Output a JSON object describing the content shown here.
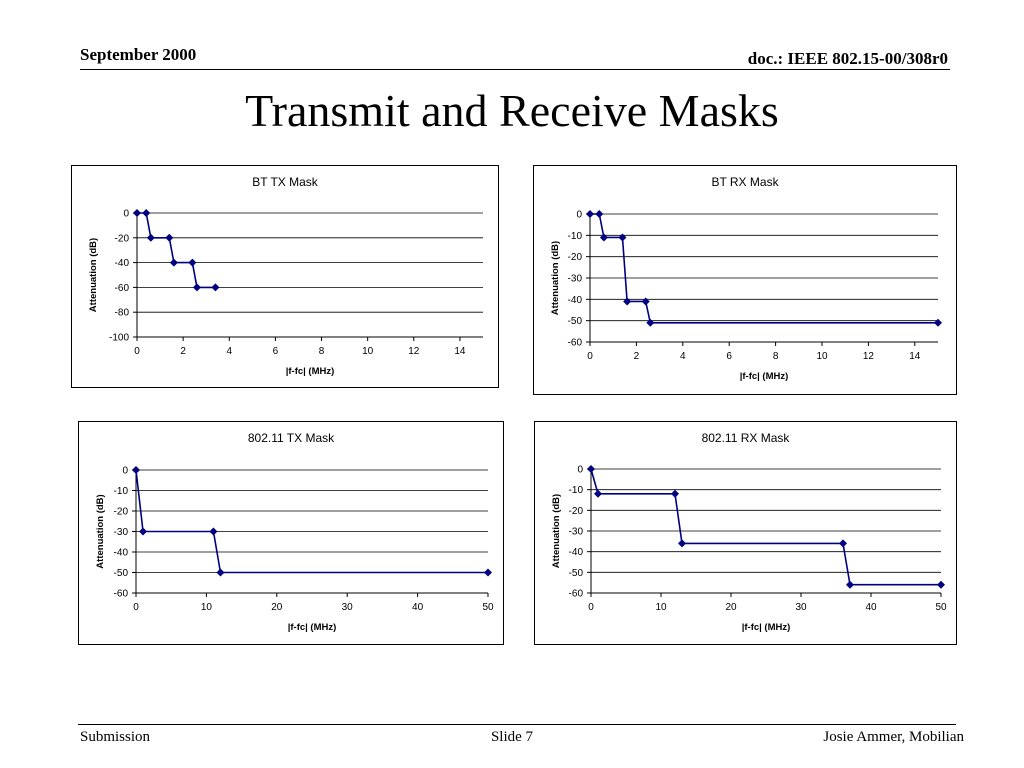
{
  "header": {
    "left": "September 2000",
    "right": "doc.: IEEE 802.15-00/308r0"
  },
  "slide_title": "Transmit and Receive Masks",
  "footer": {
    "left": "Submission",
    "center": "Slide 7",
    "right": "Josie Ammer, Mobilian"
  },
  "colors": {
    "series": "#000080",
    "grid": "#000000",
    "frame": "#000000"
  },
  "chart_data": [
    {
      "type": "line",
      "title": "BT TX Mask",
      "xlabel": "|f-fc| (MHz)",
      "ylabel": "Attenuation (dB)",
      "xlim": [
        0,
        15
      ],
      "ylim": [
        -100,
        0
      ],
      "xticks": [
        0,
        2,
        4,
        6,
        8,
        10,
        12,
        14
      ],
      "yticks": [
        0,
        -20,
        -40,
        -60,
        -80,
        -100
      ],
      "grid": true,
      "legend": "none",
      "series": [
        {
          "x": [
            0,
            0.4,
            0.6,
            1.4,
            1.6,
            2.4,
            2.6,
            3.4
          ],
          "y": [
            0,
            0,
            -20,
            -20,
            -40,
            -40,
            -60,
            -60
          ]
        }
      ]
    },
    {
      "type": "line",
      "title": "BT RX Mask",
      "xlabel": "|f-fc| (MHz)",
      "ylabel": "Attenuation (dB)",
      "xlim": [
        0,
        15
      ],
      "ylim": [
        -60,
        0
      ],
      "xticks": [
        0,
        2,
        4,
        6,
        8,
        10,
        12,
        14
      ],
      "yticks": [
        0,
        -10,
        -20,
        -30,
        -40,
        -50,
        -60
      ],
      "grid": true,
      "legend": "none",
      "series": [
        {
          "x": [
            0,
            0.4,
            0.6,
            1.4,
            1.6,
            2.4,
            2.6,
            15
          ],
          "y": [
            0,
            0,
            -11,
            -11,
            -41,
            -41,
            -51,
            -51
          ]
        }
      ]
    },
    {
      "type": "line",
      "title": "802.11 TX Mask",
      "xlabel": "|f-fc| (MHz)",
      "ylabel": "Attenuation (dB)",
      "xlim": [
        0,
        50
      ],
      "ylim": [
        -60,
        0
      ],
      "xticks": [
        0,
        10,
        20,
        30,
        40,
        50
      ],
      "yticks": [
        0,
        -10,
        -20,
        -30,
        -40,
        -50,
        -60
      ],
      "grid": true,
      "legend": "none",
      "series": [
        {
          "x": [
            0,
            1,
            11,
            12,
            50
          ],
          "y": [
            0,
            -30,
            -30,
            -50,
            -50
          ]
        }
      ]
    },
    {
      "type": "line",
      "title": "802.11 RX Mask",
      "xlabel": "|f-fc| (MHz)",
      "ylabel": "Attenuation (dB)",
      "xlim": [
        0,
        50
      ],
      "ylim": [
        -60,
        0
      ],
      "xticks": [
        0,
        10,
        20,
        30,
        40,
        50
      ],
      "yticks": [
        0,
        -10,
        -20,
        -30,
        -40,
        -50,
        -60
      ],
      "grid": true,
      "legend": "none",
      "series": [
        {
          "x": [
            0,
            1,
            12,
            13,
            36,
            37,
            50
          ],
          "y": [
            0,
            -12,
            -12,
            -36,
            -36,
            -56,
            -56
          ]
        }
      ]
    }
  ]
}
